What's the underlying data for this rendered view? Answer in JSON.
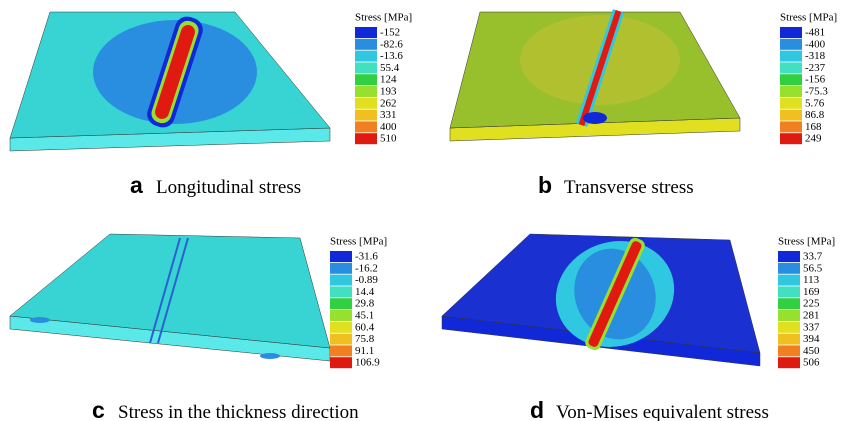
{
  "colormap": [
    "#1028d8",
    "#2a8ee0",
    "#30c8e0",
    "#40e0c0",
    "#30d040",
    "#98e030",
    "#e0e020",
    "#f0c020",
    "#f08020",
    "#e01a10"
  ],
  "panels": [
    {
      "letter": "a",
      "caption": "Longitudinal stress",
      "legend_title": "Stress [MPa]",
      "levels": [
        "-152",
        "-82.6",
        "-13.6",
        "55.4",
        "124",
        "193",
        "262",
        "331",
        "400",
        "510"
      ]
    },
    {
      "letter": "b",
      "caption": "Transverse stress",
      "legend_title": "Stress [MPa]",
      "levels": [
        "-481",
        "-400",
        "-318",
        "-237",
        "-156",
        "-75.3",
        "5.76",
        "86.8",
        "168",
        "249"
      ]
    },
    {
      "letter": "c",
      "caption": "Stress in the thickness direction",
      "legend_title": "Stress [MPa]",
      "levels": [
        "-31.6",
        "-16.2",
        "-0.89",
        "14.4",
        "29.8",
        "45.1",
        "60.4",
        "75.8",
        "91.1",
        "106.9"
      ]
    },
    {
      "letter": "d",
      "caption": "Von-Mises equivalent stress",
      "legend_title": "Stress [MPa]",
      "levels": [
        "33.7",
        "56.5",
        "113",
        "169",
        "225",
        "281",
        "337",
        "394",
        "450",
        "506"
      ]
    }
  ]
}
